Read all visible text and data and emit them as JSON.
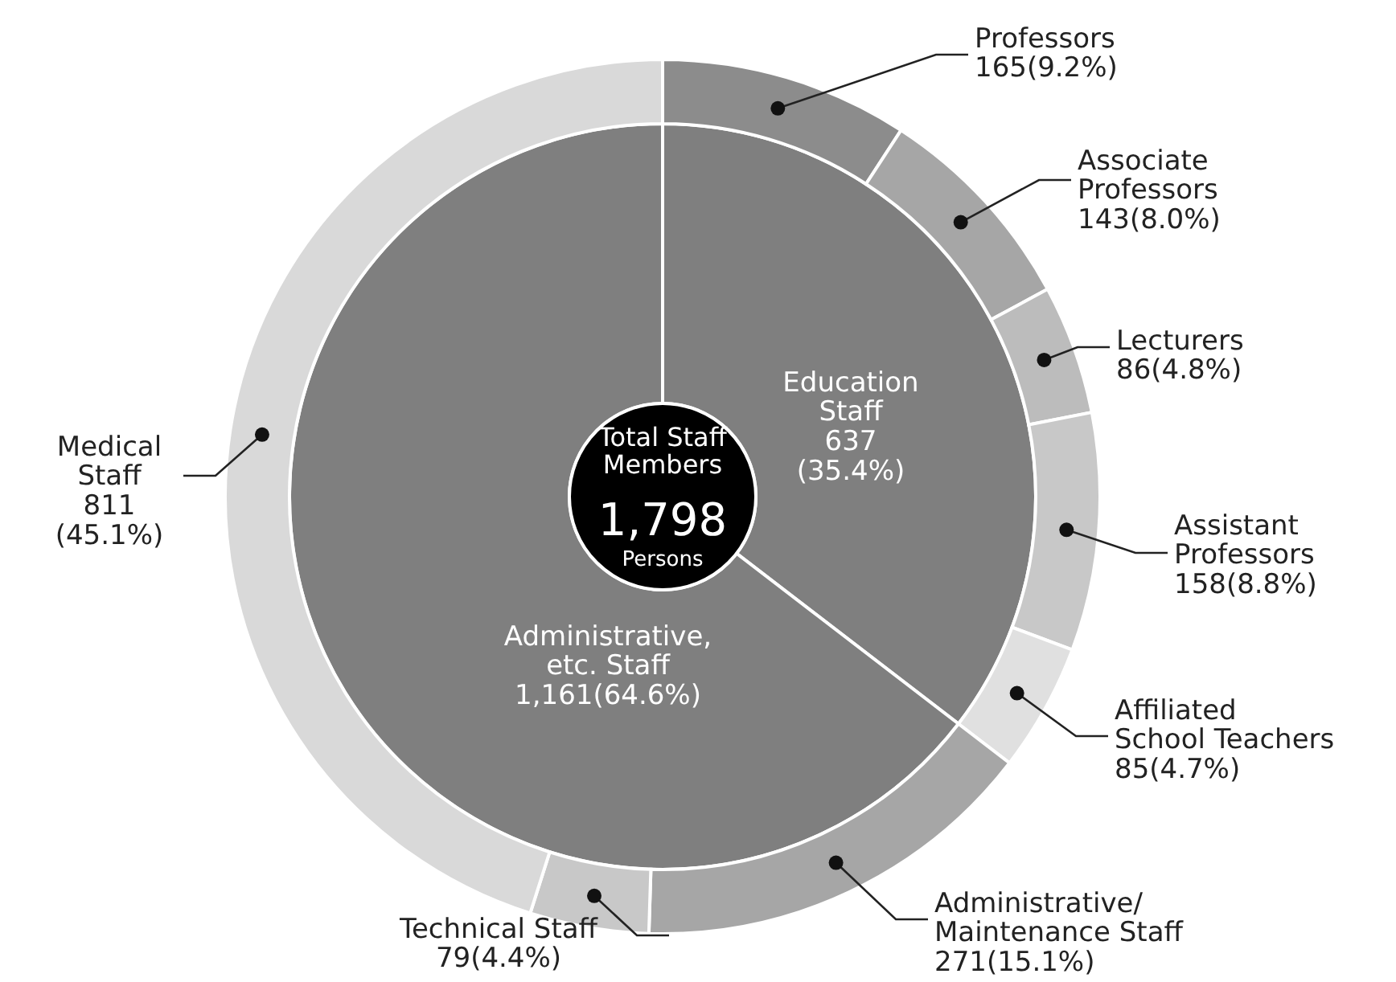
{
  "chart_data": [
    {
      "type": "donut",
      "categories": [
        "Education Staff",
        "Administrative, etc. Staff"
      ],
      "values": [
        637,
        1161
      ],
      "colors": [
        "#7f7f7f",
        "#7f7f7f"
      ],
      "value_labels": [
        "637(35.4%)",
        "1,161(64.6%)"
      ],
      "annotations": [
        "Total Staff Members",
        "1,798",
        "Persons"
      ]
    },
    {
      "type": "donut",
      "categories": [
        "Professors",
        "Associate Professors",
        "Lecturers",
        "Assistant Professors",
        "Affiliated School Teachers",
        "Administrative/ Maintenance Staff",
        "Technical Staff",
        "Medical Staff"
      ],
      "values": [
        165,
        143,
        86,
        158,
        85,
        271,
        79,
        811
      ],
      "colors": [
        "#8c8c8c",
        "#a6a6a6",
        "#bcbcbc",
        "#c8c8c8",
        "#e0e0e0",
        "#a6a6a6",
        "#c8c8c8",
        "#d9d9d9"
      ],
      "value_labels": [
        "165(9.2%)",
        "143(8.0%)",
        "86(4.8%)",
        "158(8.8%)",
        "85(4.7%)",
        "271(15.1%)",
        "79(4.4%)",
        "811(45.1%)"
      ]
    }
  ]
}
